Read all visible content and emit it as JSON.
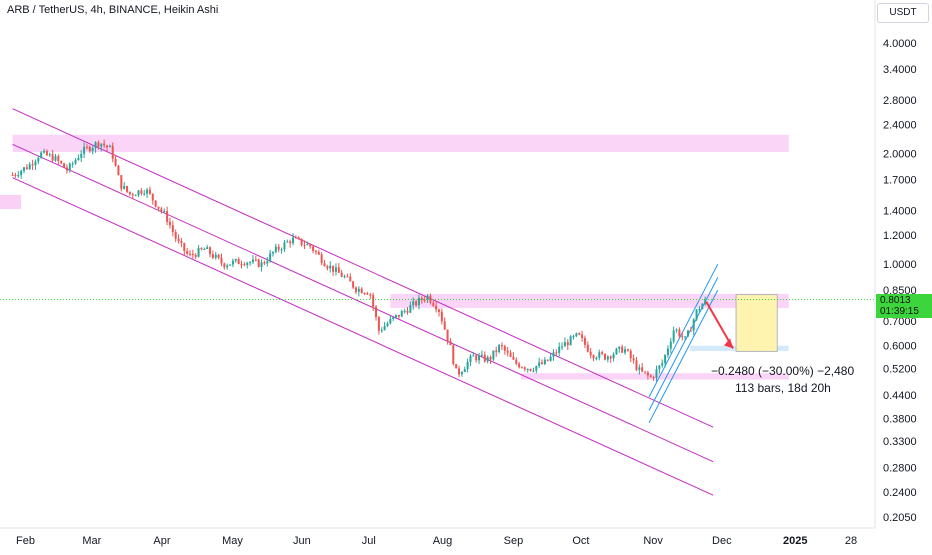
{
  "header": {
    "title": "ARB / TetherUS, 4h, BINANCE, Heikin Ashi"
  },
  "price_axis": {
    "currency": "USDT",
    "current_price": "0.8013",
    "countdown": "01:39:15"
  },
  "measurement": {
    "change": "−0.2480 (−30.00%) −2,480",
    "duration": "113 bars, 18d 20h"
  },
  "colors": {
    "up_candle": "#26a69a",
    "down_candle": "#ef5350",
    "channel_line": "#c42bc4",
    "ascending_channel": "#2196f3",
    "zone_pink": "#fbd0f7",
    "zone_blue": "#cfe8fb",
    "target_box": "#fff3b0",
    "arrow": "#f23645",
    "price_tag": "#3cd53c"
  },
  "chart_data": {
    "type": "candlestick",
    "symbol": "ARB / TetherUS",
    "interval": "4h",
    "exchange": "BINANCE",
    "style": "Heikin Ashi",
    "y_scale": "log",
    "ylim": [
      0.195,
      4.6
    ],
    "y_ticks": [
      "4.0000",
      "3.4000",
      "2.8000",
      "2.4000",
      "2.0000",
      "1.7000",
      "1.4000",
      "1.2000",
      "1.0000",
      "0.8500",
      "0.7000",
      "0.6000",
      "0.5200",
      "0.4400",
      "0.3800",
      "0.3300",
      "0.2800",
      "0.2400",
      "0.2050"
    ],
    "x_ticks": [
      "Feb",
      "Mar",
      "Apr",
      "May",
      "Jun",
      "Jul",
      "Aug",
      "Sep",
      "Oct",
      "Nov",
      "Dec",
      "2025",
      "28"
    ],
    "price_path": [
      [
        "2024-01-27",
        1.75
      ],
      [
        "2024-02-03",
        1.85
      ],
      [
        "2024-02-08",
        2.0
      ],
      [
        "2024-02-14",
        1.95
      ],
      [
        "2024-02-20",
        1.8
      ],
      [
        "2024-02-26",
        2.02
      ],
      [
        "2024-03-05",
        2.15
      ],
      [
        "2024-03-10",
        2.05
      ],
      [
        "2024-03-14",
        1.65
      ],
      [
        "2024-03-18",
        1.55
      ],
      [
        "2024-03-25",
        1.6
      ],
      [
        "2024-03-30",
        1.45
      ],
      [
        "2024-04-03",
        1.35
      ],
      [
        "2024-04-08",
        1.15
      ],
      [
        "2024-04-13",
        1.05
      ],
      [
        "2024-04-20",
        1.1
      ],
      [
        "2024-04-28",
        1.0
      ],
      [
        "2024-05-07",
        1.02
      ],
      [
        "2024-05-15",
        1.0
      ],
      [
        "2024-05-20",
        1.08
      ],
      [
        "2024-05-28",
        1.17
      ],
      [
        "2024-06-05",
        1.12
      ],
      [
        "2024-06-12",
        1.0
      ],
      [
        "2024-06-20",
        0.92
      ],
      [
        "2024-06-25",
        0.86
      ],
      [
        "2024-07-01",
        0.84
      ],
      [
        "2024-07-05",
        0.66
      ],
      [
        "2024-07-10",
        0.7
      ],
      [
        "2024-07-18",
        0.76
      ],
      [
        "2024-07-26",
        0.82
      ],
      [
        "2024-07-31",
        0.76
      ],
      [
        "2024-08-05",
        0.6
      ],
      [
        "2024-08-08",
        0.5
      ],
      [
        "2024-08-15",
        0.56
      ],
      [
        "2024-08-22",
        0.55
      ],
      [
        "2024-08-27",
        0.6
      ],
      [
        "2024-09-02",
        0.54
      ],
      [
        "2024-09-09",
        0.52
      ],
      [
        "2024-09-16",
        0.54
      ],
      [
        "2024-09-23",
        0.6
      ],
      [
        "2024-09-30",
        0.64
      ],
      [
        "2024-10-06",
        0.57
      ],
      [
        "2024-10-12",
        0.56
      ],
      [
        "2024-10-20",
        0.59
      ],
      [
        "2024-10-27",
        0.51
      ],
      [
        "2024-11-01",
        0.49
      ],
      [
        "2024-11-06",
        0.54
      ],
      [
        "2024-11-11",
        0.67
      ],
      [
        "2024-11-16",
        0.62
      ],
      [
        "2024-11-21",
        0.75
      ],
      [
        "2024-11-25",
        0.8
      ]
    ],
    "trend_channel_descending": [
      {
        "from": [
          "2024-01-27",
          2.65
        ],
        "to": [
          "2024-11-28",
          0.36
        ]
      },
      {
        "from": [
          "2024-01-27",
          2.12
        ],
        "to": [
          "2024-11-28",
          0.29
        ]
      },
      {
        "from": [
          "2024-01-27",
          1.72
        ],
        "to": [
          "2024-11-28",
          0.235
        ]
      }
    ],
    "trend_channel_ascending": [
      {
        "from": [
          "2024-10-31",
          0.435
        ],
        "to": [
          "2024-11-30",
          1.0
        ]
      },
      {
        "from": [
          "2024-10-31",
          0.4
        ],
        "to": [
          "2024-11-30",
          0.92
        ]
      },
      {
        "from": [
          "2024-10-31",
          0.37
        ],
        "to": [
          "2024-11-30",
          0.85
        ]
      }
    ],
    "zones": [
      {
        "color": "pink",
        "low": 2.02,
        "high": 2.25,
        "from": "2024-01-27",
        "to": "2024-12-31"
      },
      {
        "color": "pink",
        "low": 0.76,
        "high": 0.83,
        "from": "2024-07-10",
        "to": "2024-12-31"
      },
      {
        "color": "pink",
        "low": 0.485,
        "high": 0.505,
        "from": "2024-09-05",
        "to": "2024-12-31"
      },
      {
        "color": "blue",
        "low": 0.58,
        "high": 0.6,
        "from": "2024-11-18",
        "to": "2024-12-31"
      }
    ],
    "measure_box": {
      "from": "2024-12-08",
      "to": "2024-12-26",
      "top": 0.8267,
      "bottom": 0.5787
    },
    "current_price": 0.8013
  }
}
